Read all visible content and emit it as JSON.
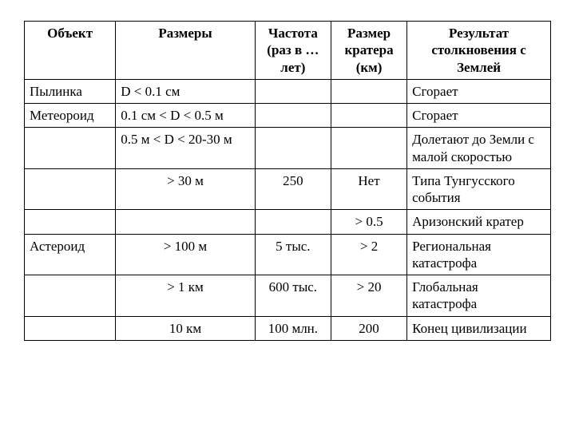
{
  "table": {
    "headers": {
      "object": "Объект",
      "size": "Размеры",
      "frequency": "Частота (раз в … лет)",
      "crater": "Размер кратера (км)",
      "result": "Результат столкновения с Землей"
    },
    "rows": [
      {
        "object": "Пылинка",
        "size": "D < 0.1 см",
        "size_align": "left",
        "frequency": "",
        "crater": "",
        "result": "Сгорает"
      },
      {
        "object": "Метеороид",
        "size": "0.1 см < D < 0.5 м",
        "size_align": "left",
        "frequency": "",
        "crater": "",
        "result": "Сгорает"
      },
      {
        "object": "",
        "size": "0.5 м   < D < 20-30   м",
        "size_align": "left",
        "frequency": "",
        "crater": "",
        "result": "Долетают до Земли с малой скоростью"
      },
      {
        "object": "",
        "size": "> 30 м",
        "size_align": "center",
        "frequency": "250",
        "crater": "Нет",
        "result": "Типа Тунгусского события"
      },
      {
        "object": "",
        "size": "",
        "size_align": "left",
        "frequency": "",
        "crater": "> 0.5",
        "result": "Аризонский кратер"
      },
      {
        "object": "Астероид",
        "size": "> 100 м",
        "size_align": "center",
        "frequency": "5 тыс.",
        "crater": "> 2",
        "result": "Региональная катастрофа"
      },
      {
        "object": "",
        "size": "> 1   км",
        "size_align": "center",
        "frequency": "600 тыс.",
        "crater": "> 20",
        "result": "Глобальная катастрофа"
      },
      {
        "object": "",
        "size": "10 км",
        "size_align": "center",
        "frequency": "100 млн.",
        "crater": "200",
        "result": "Конец цивилизации"
      }
    ]
  },
  "colors": {
    "border": "#000000",
    "background": "#ffffff",
    "text": "#000000"
  },
  "font": {
    "family": "Times New Roman",
    "size_pt": 13
  }
}
